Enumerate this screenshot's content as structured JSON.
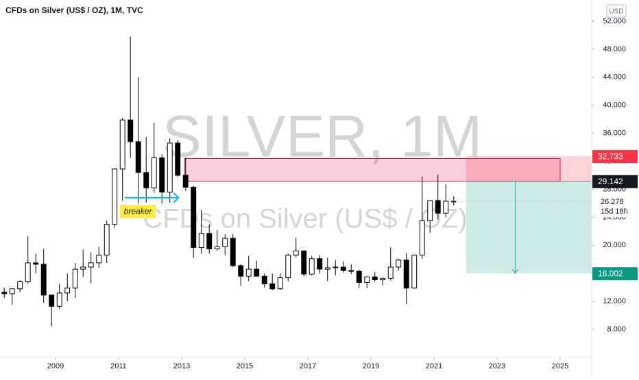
{
  "chart_data": {
    "type": "candlestick",
    "title": "CFDs on Silver (US$ / OZ), 1M, TVC",
    "watermark": "SILVER, 1M",
    "watermark_sub": "CFDs on Silver (US$ / OZ)",
    "currency": "USD",
    "x": [
      2007.25,
      2007.5,
      2007.75,
      2008,
      2008.25,
      2008.5,
      2008.75,
      2009,
      2009.25,
      2009.5,
      2009.75,
      2010,
      2010.25,
      2010.5,
      2010.75,
      2011,
      2011.25,
      2011.5,
      2011.75,
      2012,
      2012.25,
      2012.5,
      2012.75,
      2013,
      2013.25,
      2013.5,
      2013.75,
      2014,
      2014.25,
      2014.5,
      2014.75,
      2015,
      2015.25,
      2015.5,
      2015.75,
      2016,
      2016.25,
      2016.5,
      2016.75,
      2017,
      2017.25,
      2017.5,
      2017.75,
      2018,
      2018.25,
      2018.5,
      2018.75,
      2019,
      2019.25,
      2019.5,
      2019.75,
      2020,
      2020.25,
      2020.5,
      2020.75,
      2021,
      2021.25,
      2021.5
    ],
    "open": [
      13.3,
      13.1,
      13.8,
      14.8,
      17.5,
      17.3,
      12.9,
      11.3,
      13.2,
      13.9,
      16.6,
      16.9,
      17.5,
      18.6,
      23.0,
      30.9,
      37.9,
      34.8,
      30.4,
      28.2,
      32.5,
      27.6,
      34.6,
      30.0,
      28.3,
      19.7,
      21.7,
      19.5,
      19.8,
      21.0,
      17.1,
      15.6,
      16.6,
      15.6,
      14.5,
      13.8,
      15.4,
      18.6,
      19.2,
      15.9,
      18.1,
      16.6,
      16.8,
      16.9,
      16.4,
      16.3,
      14.7,
      15.5,
      15.1,
      15.3,
      16.9,
      17.9,
      13.9,
      18.6,
      23.5,
      26.4,
      24.6,
      26.3
    ],
    "high": [
      14.0,
      13.8,
      15.0,
      21.3,
      18.8,
      19.5,
      13.0,
      14.5,
      16.0,
      17.5,
      19.4,
      19.0,
      19.8,
      23.5,
      31.0,
      38.2,
      49.8,
      44.0,
      35.5,
      37.5,
      33.0,
      35.3,
      35.0,
      32.5,
      28.5,
      25.1,
      23.0,
      22.2,
      21.6,
      21.6,
      17.3,
      18.5,
      17.8,
      16.0,
      16.0,
      16.0,
      18.8,
      21.1,
      19.3,
      18.5,
      18.6,
      18.2,
      17.9,
      17.7,
      17.3,
      16.5,
      15.6,
      16.2,
      15.4,
      19.7,
      18.1,
      18.9,
      18.7,
      29.8,
      26.4,
      30.1,
      28.7,
      27.0
    ],
    "low": [
      12.5,
      11.5,
      13.3,
      14.5,
      16.0,
      11.8,
      8.4,
      10.9,
      12.0,
      12.5,
      15.5,
      14.6,
      16.8,
      17.5,
      22.5,
      26.4,
      32.5,
      26.0,
      26.1,
      27.5,
      26.0,
      26.1,
      29.8,
      27.8,
      18.2,
      18.8,
      18.8,
      19.2,
      18.6,
      16.9,
      14.2,
      14.9,
      15.5,
      14.0,
      13.6,
      13.6,
      14.9,
      18.3,
      15.6,
      15.7,
      16.0,
      14.9,
      15.7,
      16.1,
      15.9,
      13.9,
      13.9,
      14.8,
      14.3,
      15.0,
      16.4,
      11.6,
      13.8,
      18.1,
      21.8,
      23.7,
      24.0,
      25.7
    ],
    "close": [
      13.1,
      13.8,
      14.8,
      17.5,
      17.3,
      12.9,
      11.3,
      13.2,
      13.9,
      16.6,
      16.9,
      17.5,
      18.6,
      23.0,
      30.9,
      37.9,
      34.8,
      30.4,
      28.2,
      32.5,
      27.6,
      34.6,
      30.0,
      28.3,
      19.7,
      21.7,
      19.5,
      19.8,
      21.0,
      17.1,
      15.6,
      16.6,
      15.6,
      14.5,
      13.8,
      15.4,
      18.6,
      19.2,
      15.9,
      18.1,
      16.6,
      16.8,
      16.9,
      16.4,
      16.3,
      14.7,
      15.5,
      15.1,
      15.3,
      16.9,
      17.9,
      13.9,
      18.6,
      23.5,
      26.4,
      24.6,
      26.3,
      26.278
    ],
    "xlim": [
      2007.24,
      2026.0
    ],
    "xticks": [
      2009,
      2011,
      2013,
      2015,
      2017,
      2019,
      2021,
      2023,
      2025
    ],
    "ylim": [
      4.0,
      55.03
    ],
    "yticks": [
      {
        "value": 8,
        "label": "8.000"
      },
      {
        "value": 12,
        "label": "12.000"
      },
      {
        "value": 16,
        "label": "16.000"
      },
      {
        "value": 20,
        "label": "20.000"
      },
      {
        "value": 24,
        "label": "24.000"
      },
      {
        "value": 28,
        "label": "28.000"
      },
      {
        "value": 32,
        "label": "32.000"
      },
      {
        "value": 36,
        "label": "36.000"
      },
      {
        "value": 40,
        "label": "40.000"
      },
      {
        "value": 44,
        "label": "44.000"
      },
      {
        "value": 48,
        "label": "48.000"
      },
      {
        "value": 52,
        "label": "52.000"
      }
    ],
    "zone": {
      "x_start": 2013.1,
      "x_end": 2025.0,
      "top": 32.4,
      "bottom": 29.142
    },
    "position": {
      "x_start": 2022.02,
      "x_end": 2026.0,
      "stop": 32.733,
      "entry": 29.142,
      "target": 16.002
    },
    "last": {
      "value": 26.278,
      "countdown": "15d 18h"
    },
    "annotation": {
      "text": "breaker",
      "x": 2011.61,
      "y": 24.87,
      "arrow_from": 2011.2,
      "arrow_to": 2012.9,
      "arrow_y": 26.8
    }
  }
}
